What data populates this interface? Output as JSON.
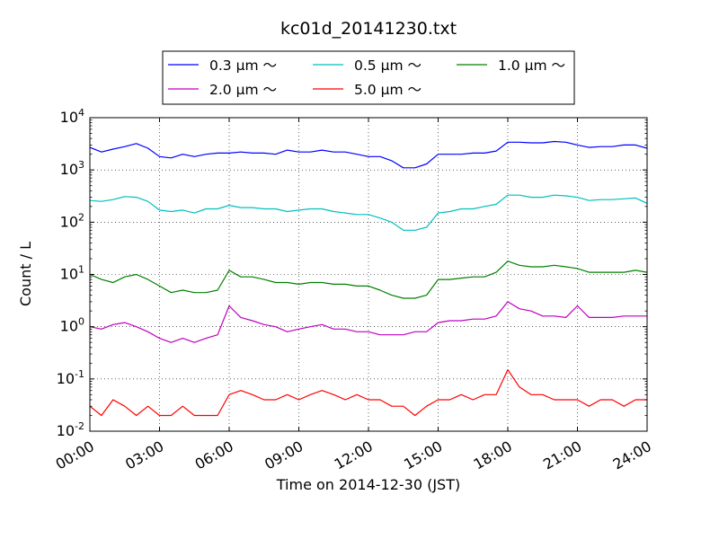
{
  "chart_data": {
    "type": "line",
    "title": "kc01d_20141230.txt",
    "xlabel": "Time on 2014-12-30 (JST)",
    "ylabel": "Count / L",
    "x_unit": "hours",
    "xlim": [
      0,
      24
    ],
    "yscale": "log",
    "ylim": [
      0.01,
      10000
    ],
    "grid": true,
    "legend_position": "top-center",
    "x_ticks": [
      {
        "value": 0,
        "label": "00:00"
      },
      {
        "value": 3,
        "label": "03:00"
      },
      {
        "value": 6,
        "label": "06:00"
      },
      {
        "value": 9,
        "label": "09:00"
      },
      {
        "value": 12,
        "label": "12:00"
      },
      {
        "value": 15,
        "label": "15:00"
      },
      {
        "value": 18,
        "label": "18:00"
      },
      {
        "value": 21,
        "label": "21:00"
      },
      {
        "value": 24,
        "label": "24:00"
      }
    ],
    "y_ticks": [
      {
        "value": 0.01,
        "base": "10",
        "exp": "-2"
      },
      {
        "value": 0.1,
        "base": "10",
        "exp": "-1"
      },
      {
        "value": 1,
        "base": "10",
        "exp": "0"
      },
      {
        "value": 10,
        "base": "10",
        "exp": "1"
      },
      {
        "value": 100,
        "base": "10",
        "exp": "2"
      },
      {
        "value": 1000,
        "base": "10",
        "exp": "3"
      },
      {
        "value": 10000,
        "base": "10",
        "exp": "4"
      }
    ],
    "series": [
      {
        "name": "0.3 μm ～",
        "color": "#0000ff",
        "x": [
          0,
          0.5,
          1,
          1.5,
          2,
          2.5,
          3,
          3.5,
          4,
          4.5,
          5,
          5.5,
          6,
          6.5,
          7,
          7.5,
          8,
          8.5,
          9,
          9.5,
          10,
          10.5,
          11,
          11.5,
          12,
          12.5,
          13,
          13.5,
          14,
          14.5,
          15,
          15.5,
          16,
          16.5,
          17,
          17.5,
          18,
          18.5,
          19,
          19.5,
          20,
          20.5,
          21,
          21.5,
          22,
          22.5,
          23,
          23.5,
          24
        ],
        "y": [
          2700,
          2200,
          2500,
          2800,
          3200,
          2600,
          1800,
          1700,
          2000,
          1800,
          2000,
          2100,
          2100,
          2200,
          2100,
          2100,
          2000,
          2400,
          2200,
          2200,
          2400,
          2200,
          2200,
          2000,
          1800,
          1800,
          1500,
          1100,
          1100,
          1300,
          2000,
          2000,
          2000,
          2100,
          2100,
          2300,
          3400,
          3400,
          3300,
          3300,
          3500,
          3400,
          3000,
          2700,
          2800,
          2800,
          3000,
          3000,
          2600
        ]
      },
      {
        "name": "0.5 μm ～",
        "color": "#00bfbf",
        "x": [
          0,
          0.5,
          1,
          1.5,
          2,
          2.5,
          3,
          3.5,
          4,
          4.5,
          5,
          5.5,
          6,
          6.5,
          7,
          7.5,
          8,
          8.5,
          9,
          9.5,
          10,
          10.5,
          11,
          11.5,
          12,
          12.5,
          13,
          13.5,
          14,
          14.5,
          15,
          15.5,
          16,
          16.5,
          17,
          17.5,
          18,
          18.5,
          19,
          19.5,
          20,
          20.5,
          21,
          21.5,
          22,
          22.5,
          23,
          23.5,
          24
        ],
        "y": [
          260,
          250,
          270,
          310,
          300,
          250,
          170,
          160,
          170,
          150,
          180,
          180,
          210,
          190,
          190,
          180,
          180,
          160,
          170,
          180,
          180,
          160,
          150,
          140,
          140,
          120,
          100,
          70,
          70,
          80,
          150,
          160,
          180,
          180,
          200,
          220,
          330,
          330,
          300,
          300,
          330,
          320,
          300,
          260,
          270,
          270,
          280,
          290,
          230
        ]
      },
      {
        "name": "1.0 μm ～",
        "color": "#008000",
        "x": [
          0,
          0.5,
          1,
          1.5,
          2,
          2.5,
          3,
          3.5,
          4,
          4.5,
          5,
          5.5,
          6,
          6.5,
          7,
          7.5,
          8,
          8.5,
          9,
          9.5,
          10,
          10.5,
          11,
          11.5,
          12,
          12.5,
          13,
          13.5,
          14,
          14.5,
          15,
          15.5,
          16,
          16.5,
          17,
          17.5,
          18,
          18.5,
          19,
          19.5,
          20,
          20.5,
          21,
          21.5,
          22,
          22.5,
          23,
          23.5,
          24
        ],
        "y": [
          10,
          8,
          7,
          9,
          10,
          8,
          6,
          4.5,
          5,
          4.5,
          4.5,
          5,
          12,
          9,
          9,
          8,
          7,
          7,
          6.5,
          7,
          7,
          6.5,
          6.5,
          6,
          6,
          5,
          4,
          3.5,
          3.5,
          4,
          8,
          8,
          8.5,
          9,
          9,
          11,
          18,
          15,
          14,
          14,
          15,
          14,
          13,
          11,
          11,
          11,
          11,
          12,
          11
        ]
      },
      {
        "name": "2.0 μm ～",
        "color": "#bf00bf",
        "x": [
          0,
          0.5,
          1,
          1.5,
          2,
          2.5,
          3,
          3.5,
          4,
          4.5,
          5,
          5.5,
          6,
          6.5,
          7,
          7.5,
          8,
          8.5,
          9,
          9.5,
          10,
          10.5,
          11,
          11.5,
          12,
          12.5,
          13,
          13.5,
          14,
          14.5,
          15,
          15.5,
          16,
          16.5,
          17,
          17.5,
          18,
          18.5,
          19,
          19.5,
          20,
          20.5,
          21,
          21.5,
          22,
          22.5,
          23,
          23.5,
          24
        ],
        "y": [
          1.0,
          0.9,
          1.1,
          1.2,
          1.0,
          0.8,
          0.6,
          0.5,
          0.6,
          0.5,
          0.6,
          0.7,
          2.5,
          1.5,
          1.3,
          1.1,
          1.0,
          0.8,
          0.9,
          1.0,
          1.1,
          0.9,
          0.9,
          0.8,
          0.8,
          0.7,
          0.7,
          0.7,
          0.8,
          0.8,
          1.2,
          1.3,
          1.3,
          1.4,
          1.4,
          1.6,
          3.0,
          2.2,
          2.0,
          1.6,
          1.6,
          1.5,
          2.5,
          1.5,
          1.5,
          1.5,
          1.6,
          1.6,
          1.6
        ]
      },
      {
        "name": "5.0 μm ～",
        "color": "#ff0000",
        "x": [
          0,
          0.5,
          1,
          1.5,
          2,
          2.5,
          3,
          3.5,
          4,
          4.5,
          5,
          5.5,
          6,
          6.5,
          7,
          7.5,
          8,
          8.5,
          9,
          9.5,
          10,
          10.5,
          11,
          11.5,
          12,
          12.5,
          13,
          13.5,
          14,
          14.5,
          15,
          15.5,
          16,
          16.5,
          17,
          17.5,
          18,
          18.5,
          19,
          19.5,
          20,
          20.5,
          21,
          21.5,
          22,
          22.5,
          23,
          23.5,
          24
        ],
        "y": [
          0.03,
          0.02,
          0.04,
          0.03,
          0.02,
          0.03,
          0.02,
          0.02,
          0.03,
          0.02,
          0.02,
          0.02,
          0.05,
          0.06,
          0.05,
          0.04,
          0.04,
          0.05,
          0.04,
          0.05,
          0.06,
          0.05,
          0.04,
          0.05,
          0.04,
          0.04,
          0.03,
          0.03,
          0.02,
          0.03,
          0.04,
          0.04,
          0.05,
          0.04,
          0.05,
          0.05,
          0.15,
          0.07,
          0.05,
          0.05,
          0.04,
          0.04,
          0.04,
          0.03,
          0.04,
          0.04,
          0.03,
          0.04,
          0.04
        ]
      }
    ]
  }
}
